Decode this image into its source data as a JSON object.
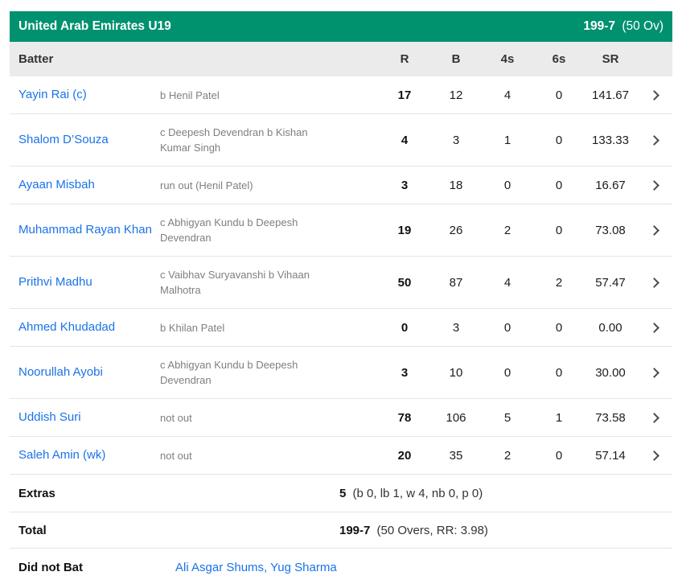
{
  "header": {
    "team": "United Arab Emirates U19",
    "score": "199-7",
    "overs": "(50 Ov)"
  },
  "columns": {
    "batter": "Batter",
    "runs": "R",
    "balls": "B",
    "fours": "4s",
    "sixes": "6s",
    "strike_rate": "SR"
  },
  "batters": [
    {
      "name": "Yayin Rai (c)",
      "dismissal": "b Henil Patel",
      "r": "17",
      "b": "12",
      "fours": "4",
      "sixes": "0",
      "sr": "141.67"
    },
    {
      "name": "Shalom D’Souza",
      "dismissal": "c Deepesh Devendran b Kishan Kumar Singh",
      "r": "4",
      "b": "3",
      "fours": "1",
      "sixes": "0",
      "sr": "133.33"
    },
    {
      "name": "Ayaan Misbah",
      "dismissal": "run out (Henil Patel)",
      "r": "3",
      "b": "18",
      "fours": "0",
      "sixes": "0",
      "sr": "16.67"
    },
    {
      "name": "Muhammad Rayan Khan",
      "dismissal": "c Abhigyan Kundu b Deepesh Devendran",
      "r": "19",
      "b": "26",
      "fours": "2",
      "sixes": "0",
      "sr": "73.08"
    },
    {
      "name": "Prithvi Madhu",
      "dismissal": "c Vaibhav Suryavanshi b Vihaan Malhotra",
      "r": "50",
      "b": "87",
      "fours": "4",
      "sixes": "2",
      "sr": "57.47"
    },
    {
      "name": "Ahmed Khudadad",
      "dismissal": "b Khilan Patel",
      "r": "0",
      "b": "3",
      "fours": "0",
      "sixes": "0",
      "sr": "0.00"
    },
    {
      "name": "Noorullah Ayobi",
      "dismissal": "c Abhigyan Kundu b Deepesh Devendran",
      "r": "3",
      "b": "10",
      "fours": "0",
      "sixes": "0",
      "sr": "30.00"
    },
    {
      "name": "Uddish Suri",
      "dismissal": "not out",
      "r": "78",
      "b": "106",
      "fours": "5",
      "sixes": "1",
      "sr": "73.58"
    },
    {
      "name": "Saleh Amin (wk)",
      "dismissal": "not out",
      "r": "20",
      "b": "35",
      "fours": "2",
      "sixes": "0",
      "sr": "57.14"
    }
  ],
  "extras": {
    "label": "Extras",
    "value": "5",
    "detail": "(b 0, lb 1, w 4, nb 0, p 0)"
  },
  "total": {
    "label": "Total",
    "value": "199-7",
    "detail": "(50 Overs, RR: 3.98)"
  },
  "did_not_bat": {
    "label": "Did not Bat",
    "players": "Ali Asgar Shums, Yug Sharma"
  },
  "icons": {
    "chevron_right": "chevron-right"
  },
  "colors": {
    "header_green": "#00916f",
    "column_header_bg": "#ebebeb",
    "link_blue": "#1a73e8",
    "dismissal_gray": "#7f7f7f",
    "divider": "#e4e4e4"
  }
}
